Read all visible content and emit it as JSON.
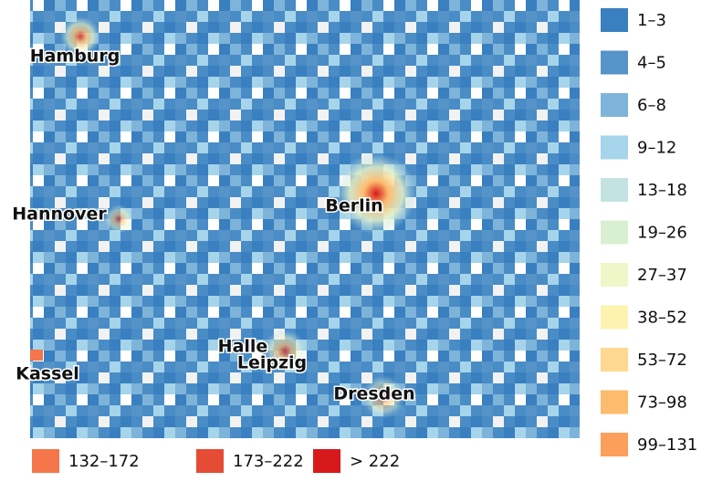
{
  "cities": [
    "Hamburg",
    "Hannover",
    "Berlin",
    "Halle",
    "Leipzig",
    "Kassel",
    "Dresden"
  ],
  "legend": {
    "items": [
      {
        "label": "1–3",
        "color": "#3a7fc0"
      },
      {
        "label": "4–5",
        "color": "#5593c8"
      },
      {
        "label": "6–8",
        "color": "#7eb4d9"
      },
      {
        "label": "9–12",
        "color": "#a6d4ea"
      },
      {
        "label": "13–18",
        "color": "#c3e3e3"
      },
      {
        "label": "19–26",
        "color": "#d9efd2"
      },
      {
        "label": "27–37",
        "color": "#eff7c9"
      },
      {
        "label": "38–52",
        "color": "#fdf2b0"
      },
      {
        "label": "53–72",
        "color": "#fdd88e"
      },
      {
        "label": "73–98",
        "color": "#fdbb6e"
      },
      {
        "label": "99–131",
        "color": "#fb9f5a"
      },
      {
        "label": "132–172",
        "color": "#f4764a"
      },
      {
        "label": "173–222",
        "color": "#e54b35"
      },
      {
        "label": "> 222",
        "color": "#d7191c"
      }
    ]
  }
}
